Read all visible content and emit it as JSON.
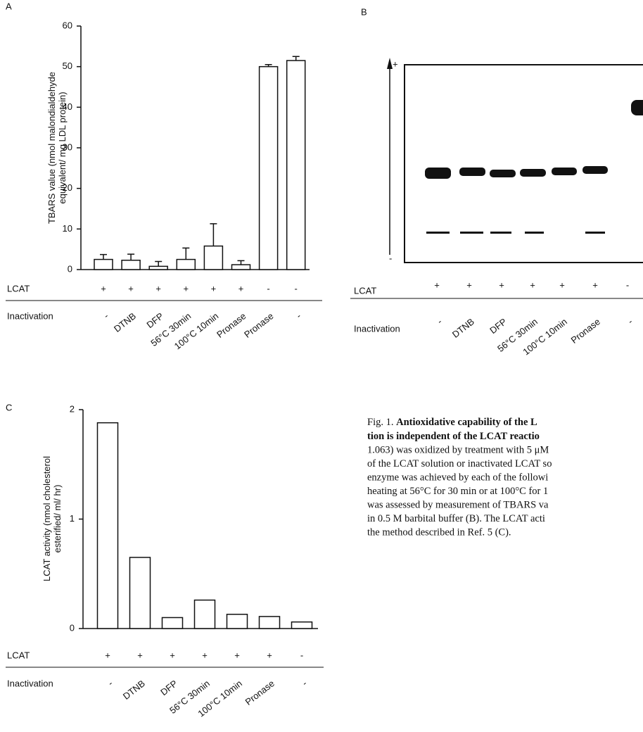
{
  "panels": {
    "a": "A",
    "b": "B",
    "c": "C"
  },
  "chart_data": [
    {
      "type": "bar",
      "y_label": [
        "TBARS value (nmol malondialdehyde",
        "equivalent/ mg LDL protein)"
      ],
      "row_labels": [
        "LCAT",
        "Inactivation"
      ],
      "categories": [
        "-",
        "DTNB",
        "DFP",
        "56°C 30min",
        "100°C 10min",
        "Pronase",
        "Pronase",
        "-"
      ],
      "lcat": [
        "+",
        "+",
        "+",
        "+",
        "+",
        "+",
        "-",
        "-"
      ],
      "values": [
        2.5,
        2.3,
        0.8,
        2.5,
        5.8,
        1.2,
        50,
        51.5
      ],
      "errors": [
        1.2,
        1.5,
        1.2,
        2.8,
        5.5,
        1.0,
        0.5,
        1.0
      ],
      "color": "#ffffff",
      "ylim": [
        0,
        60
      ],
      "yticks": [
        0,
        10,
        20,
        30,
        40,
        50,
        60
      ]
    },
    {
      "type": "bar",
      "y_label": [
        "LCAT activity (nmol cholesterol",
        "esterified/ ml/ hr)"
      ],
      "row_labels": [
        "LCAT",
        "Inactivation"
      ],
      "categories": [
        "-",
        "DTNB",
        "DFP",
        "56°C 30min",
        "100°C 10min",
        "Pronase",
        "-"
      ],
      "lcat": [
        "+",
        "+",
        "+",
        "+",
        "+",
        "+",
        "-"
      ],
      "values": [
        1.88,
        0.65,
        0.1,
        0.26,
        0.13,
        0.11,
        0.06
      ],
      "color": "#ffffff",
      "ylim": [
        0,
        2
      ],
      "yticks": [
        0,
        1,
        2
      ]
    }
  ],
  "gel": {
    "pole_labels": [
      "+",
      "-"
    ],
    "row_labels": [
      "LCAT",
      "Inactivation"
    ],
    "lcat": [
      "+",
      "+",
      "+",
      "+",
      "+",
      "+",
      "-"
    ],
    "inactivation": [
      "-",
      "DTNB",
      "DFP",
      "56°C 30min",
      "100°C 10min",
      "Pronase",
      "-"
    ]
  },
  "caption": {
    "fig_label": "Fig. 1.",
    "bold_lines": [
      "Antioxidative capability of the L",
      "tion is independent of the LCAT reactio"
    ],
    "lines": [
      "1.063) was oxidized by treatment with 5 μM",
      "of the LCAT solution or inactivated LCAT so",
      "enzyme was achieved by each of the followi",
      "heating at 56°C for 30 min or at 100°C for 1",
      "was assessed by measurement of TBARS va",
      "in 0.5 M barbital buffer (B). The LCAT acti",
      "the method described in Ref. 5 (C)."
    ]
  }
}
